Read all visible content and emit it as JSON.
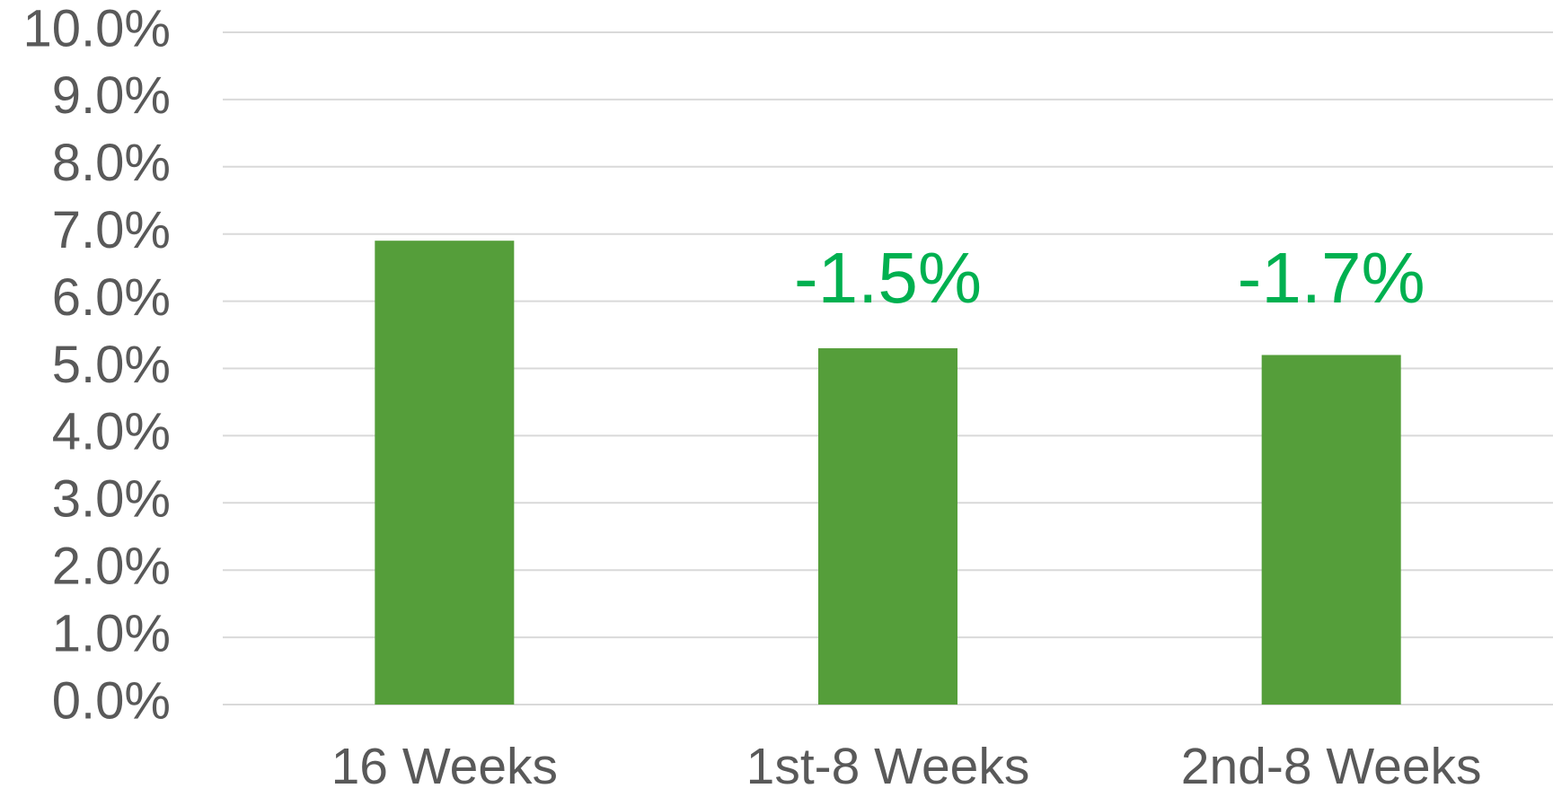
{
  "chart_data": {
    "type": "bar",
    "categories": [
      "16 Weeks",
      "1st-8 Weeks",
      "2nd-8 Weeks"
    ],
    "values": [
      6.9,
      5.3,
      5.2
    ],
    "color": "#559e3a",
    "ylim": [
      0,
      10
    ],
    "yticks": [
      {
        "value": 0,
        "label": "0.0%"
      },
      {
        "value": 1,
        "label": "1.0%"
      },
      {
        "value": 2,
        "label": "2.0%"
      },
      {
        "value": 3,
        "label": "3.0%"
      },
      {
        "value": 4,
        "label": "4.0%"
      },
      {
        "value": 5,
        "label": "5.0%"
      },
      {
        "value": 6,
        "label": "6.0%"
      },
      {
        "value": 7,
        "label": "7.0%"
      },
      {
        "value": 8,
        "label": "8.0%"
      },
      {
        "value": 9,
        "label": "9.0%"
      },
      {
        "value": 10,
        "label": "10.0%"
      }
    ],
    "grid": true,
    "annotations": [
      {
        "category": "1st-8 Weeks",
        "text": "-1.5%",
        "color": "#00b050"
      },
      {
        "category": "2nd-8 Weeks",
        "text": "-1.7%",
        "color": "#00b050"
      }
    ]
  }
}
